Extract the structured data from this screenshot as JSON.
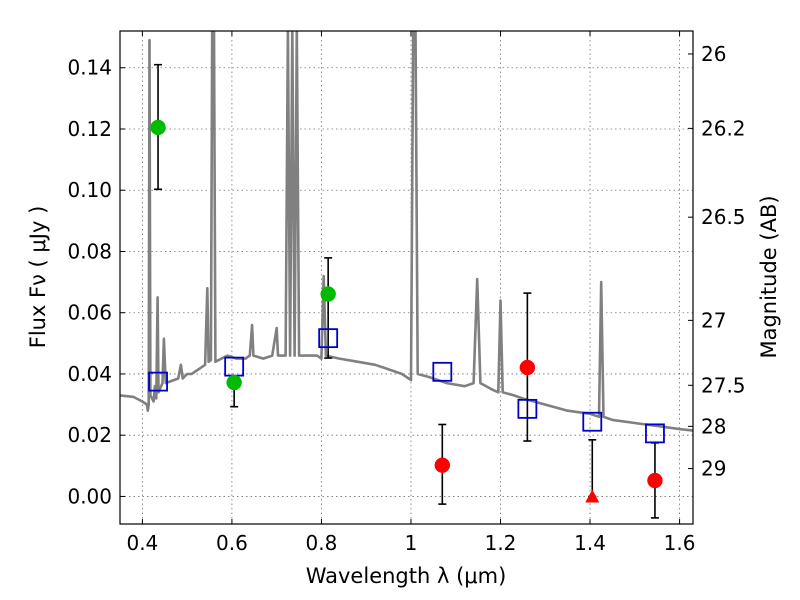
{
  "chart_data": {
    "type": "scatter",
    "xlabel": "Wavelength  λ (μm)",
    "ylabel": "Flux  Fν  ( μJy )",
    "y2label": "Magnitude (AB)",
    "xlim": [
      0.35,
      1.63
    ],
    "ylim": [
      -0.009,
      0.152
    ],
    "x_ticks": [
      0.4,
      0.6,
      0.8,
      1.0,
      1.2,
      1.4,
      1.6
    ],
    "x_tick_labels": [
      "0.4",
      "0.6",
      "0.8",
      "1",
      "1.2",
      "1.4",
      "1.6"
    ],
    "y_ticks": [
      0.0,
      0.02,
      0.04,
      0.06,
      0.08,
      0.1,
      0.12,
      0.14
    ],
    "y_tick_labels": [
      "0.00",
      "0.02",
      "0.04",
      "0.06",
      "0.08",
      "0.10",
      "0.12",
      "0.14"
    ],
    "y2_ticks": [
      {
        "label": "26",
        "flux": 0.1445
      },
      {
        "label": "26.2",
        "flux": 0.1202
      },
      {
        "label": "26.5",
        "flux": 0.0912
      },
      {
        "label": "27",
        "flux": 0.0575
      },
      {
        "label": "27.5",
        "flux": 0.0363
      },
      {
        "label": "28",
        "flux": 0.0229
      },
      {
        "label": "29",
        "flux": 0.0091
      }
    ],
    "grid": true,
    "series": [
      {
        "marker": "circle",
        "color": "#00bb00",
        "points": [
          {
            "x": 0.435,
            "y": 0.1205,
            "err_lo": 0.1003,
            "err_hi": 0.141
          },
          {
            "x": 0.605,
            "y": 0.0372,
            "err_lo": 0.0293,
            "err_hi": 0.0372
          },
          {
            "x": 0.815,
            "y": 0.0661,
            "err_lo": 0.0452,
            "err_hi": 0.0779
          }
        ]
      },
      {
        "marker": "circle",
        "color": "#ff0000",
        "points": [
          {
            "x": 1.07,
            "y": 0.0102,
            "err_lo": -0.0025,
            "err_hi": 0.0235
          },
          {
            "x": 1.26,
            "y": 0.0421,
            "err_lo": 0.0181,
            "err_hi": 0.0664
          },
          {
            "x": 1.545,
            "y": 0.0052,
            "err_lo": -0.007,
            "err_hi": 0.0175
          }
        ]
      },
      {
        "marker": "triangle",
        "color": "#ff0000",
        "points": [
          {
            "x": 1.405,
            "y": 0.0,
            "err_lo": 0.0,
            "err_hi": 0.0185
          }
        ]
      },
      {
        "marker": "square-open",
        "color": "#0000cc",
        "points": [
          {
            "x": 0.435,
            "y": 0.0375
          },
          {
            "x": 0.605,
            "y": 0.0424
          },
          {
            "x": 0.815,
            "y": 0.0517
          },
          {
            "x": 1.07,
            "y": 0.0407
          },
          {
            "x": 1.26,
            "y": 0.0286
          },
          {
            "x": 1.405,
            "y": 0.0244
          },
          {
            "x": 1.545,
            "y": 0.0206
          }
        ]
      },
      {
        "marker": "line",
        "color": "#808080",
        "points": [
          {
            "x": 0.35,
            "y": 0.033
          },
          {
            "x": 0.38,
            "y": 0.0325
          },
          {
            "x": 0.4,
            "y": 0.031
          },
          {
            "x": 0.41,
            "y": 0.03
          },
          {
            "x": 0.412,
            "y": 0.028
          },
          {
            "x": 0.414,
            "y": 0.03
          },
          {
            "x": 0.416,
            "y": 0.149
          },
          {
            "x": 0.418,
            "y": 0.033
          },
          {
            "x": 0.425,
            "y": 0.031
          },
          {
            "x": 0.428,
            "y": 0.036
          },
          {
            "x": 0.431,
            "y": 0.032
          },
          {
            "x": 0.434,
            "y": 0.065
          },
          {
            "x": 0.436,
            "y": 0.034
          },
          {
            "x": 0.445,
            "y": 0.037
          },
          {
            "x": 0.448,
            "y": 0.0515
          },
          {
            "x": 0.452,
            "y": 0.037
          },
          {
            "x": 0.47,
            "y": 0.038
          },
          {
            "x": 0.48,
            "y": 0.0385
          },
          {
            "x": 0.486,
            "y": 0.043
          },
          {
            "x": 0.49,
            "y": 0.0385
          },
          {
            "x": 0.5,
            "y": 0.04
          },
          {
            "x": 0.51,
            "y": 0.04
          },
          {
            "x": 0.52,
            "y": 0.041
          },
          {
            "x": 0.54,
            "y": 0.043
          },
          {
            "x": 0.545,
            "y": 0.068
          },
          {
            "x": 0.548,
            "y": 0.044
          },
          {
            "x": 0.553,
            "y": 0.0445
          },
          {
            "x": 0.556,
            "y": 0.153
          },
          {
            "x": 0.56,
            "y": 0.153
          },
          {
            "x": 0.563,
            "y": 0.044
          },
          {
            "x": 0.59,
            "y": 0.046
          },
          {
            "x": 0.61,
            "y": 0.045
          },
          {
            "x": 0.63,
            "y": 0.045
          },
          {
            "x": 0.64,
            "y": 0.046
          },
          {
            "x": 0.645,
            "y": 0.056
          },
          {
            "x": 0.648,
            "y": 0.046
          },
          {
            "x": 0.67,
            "y": 0.045
          },
          {
            "x": 0.69,
            "y": 0.046
          },
          {
            "x": 0.7,
            "y": 0.055
          },
          {
            "x": 0.703,
            "y": 0.046
          },
          {
            "x": 0.72,
            "y": 0.046
          },
          {
            "x": 0.725,
            "y": 0.153
          },
          {
            "x": 0.73,
            "y": 0.046
          },
          {
            "x": 0.735,
            "y": 0.153
          },
          {
            "x": 0.74,
            "y": 0.046
          },
          {
            "x": 0.745,
            "y": 0.153
          },
          {
            "x": 0.75,
            "y": 0.046
          },
          {
            "x": 0.77,
            "y": 0.046
          },
          {
            "x": 0.79,
            "y": 0.046
          },
          {
            "x": 0.8,
            "y": 0.045
          },
          {
            "x": 0.805,
            "y": 0.072
          },
          {
            "x": 0.81,
            "y": 0.046
          },
          {
            "x": 0.84,
            "y": 0.045
          },
          {
            "x": 0.88,
            "y": 0.044
          },
          {
            "x": 0.92,
            "y": 0.043
          },
          {
            "x": 0.96,
            "y": 0.041
          },
          {
            "x": 0.98,
            "y": 0.04
          },
          {
            "x": 1.0,
            "y": 0.038
          },
          {
            "x": 1.005,
            "y": 0.153
          },
          {
            "x": 1.01,
            "y": 0.153
          },
          {
            "x": 1.015,
            "y": 0.04
          },
          {
            "x": 1.04,
            "y": 0.039
          },
          {
            "x": 1.08,
            "y": 0.037
          },
          {
            "x": 1.12,
            "y": 0.036
          },
          {
            "x": 1.14,
            "y": 0.037
          },
          {
            "x": 1.148,
            "y": 0.071
          },
          {
            "x": 1.155,
            "y": 0.037
          },
          {
            "x": 1.18,
            "y": 0.035
          },
          {
            "x": 1.195,
            "y": 0.034
          },
          {
            "x": 1.2,
            "y": 0.064
          },
          {
            "x": 1.205,
            "y": 0.034
          },
          {
            "x": 1.23,
            "y": 0.033
          },
          {
            "x": 1.25,
            "y": 0.032
          },
          {
            "x": 1.3,
            "y": 0.03
          },
          {
            "x": 1.35,
            "y": 0.028
          },
          {
            "x": 1.4,
            "y": 0.027
          },
          {
            "x": 1.42,
            "y": 0.026
          },
          {
            "x": 1.425,
            "y": 0.07
          },
          {
            "x": 1.43,
            "y": 0.026
          },
          {
            "x": 1.45,
            "y": 0.025
          },
          {
            "x": 1.5,
            "y": 0.024
          },
          {
            "x": 1.55,
            "y": 0.023
          },
          {
            "x": 1.6,
            "y": 0.022
          },
          {
            "x": 1.63,
            "y": 0.0215
          }
        ]
      }
    ]
  }
}
